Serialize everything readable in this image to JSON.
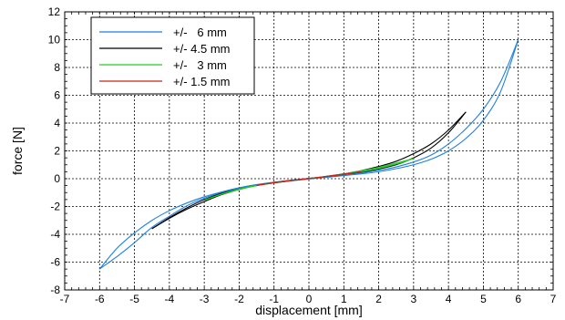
{
  "chart_data": {
    "type": "line",
    "title": "",
    "xlabel": "displacement [mm]",
    "ylabel": "force [N]",
    "xlim": [
      -7,
      7
    ],
    "ylim": [
      -8,
      12
    ],
    "xticks": [
      -7,
      -6,
      -5,
      -4,
      -3,
      -2,
      -1,
      0,
      1,
      2,
      3,
      4,
      5,
      6,
      7
    ],
    "yticks": [
      -8,
      -6,
      -4,
      -2,
      0,
      2,
      4,
      6,
      8,
      10,
      12
    ],
    "grid": true,
    "legend_position": "top-left",
    "series": [
      {
        "name": "+/-   6 mm",
        "color": "#1f7fe0",
        "loading": {
          "x": [
            -6,
            -5.5,
            -5,
            -4.5,
            -4,
            -3.5,
            -3,
            -2.5,
            -2,
            -1.5,
            -1,
            -0.5,
            0,
            0.5,
            1,
            1.5,
            2,
            2.5,
            3,
            3.5,
            4,
            4.5,
            5,
            5.5,
            6
          ],
          "y": [
            -6.5,
            -5.0,
            -3.9,
            -3.0,
            -2.3,
            -1.75,
            -1.3,
            -0.95,
            -0.65,
            -0.42,
            -0.25,
            -0.1,
            0.02,
            0.15,
            0.28,
            0.42,
            0.6,
            0.85,
            1.2,
            1.7,
            2.5,
            3.6,
            5.0,
            7.0,
            10.0
          ]
        },
        "unloading": {
          "x": [
            6,
            5.5,
            5,
            4.5,
            4,
            3.5,
            3,
            2.5,
            2,
            1.5,
            1,
            0.5,
            0,
            -0.5,
            -1,
            -1.5,
            -2,
            -2.5,
            -3,
            -3.5,
            -4,
            -4.5,
            -5,
            -5.5,
            -6
          ],
          "y": [
            10.0,
            6.3,
            4.2,
            2.9,
            2.0,
            1.4,
            1.0,
            0.72,
            0.5,
            0.35,
            0.22,
            0.1,
            -0.02,
            -0.15,
            -0.3,
            -0.48,
            -0.7,
            -1.0,
            -1.4,
            -1.95,
            -2.7,
            -3.5,
            -4.6,
            -5.6,
            -6.5
          ]
        }
      },
      {
        "name": "+/- 4.5 mm",
        "color": "#000000",
        "loading": {
          "x": [
            -4.5,
            -4,
            -3.5,
            -3,
            -2.5,
            -2,
            -1.5,
            -1,
            -0.5,
            0,
            0.5,
            1,
            1.5,
            2,
            2.5,
            3,
            3.5,
            4,
            4.5
          ],
          "y": [
            -3.6,
            -2.85,
            -2.2,
            -1.65,
            -1.15,
            -0.78,
            -0.48,
            -0.27,
            -0.12,
            0.02,
            0.15,
            0.3,
            0.48,
            0.7,
            1.0,
            1.5,
            2.2,
            3.3,
            4.8
          ]
        },
        "unloading": {
          "x": [
            4.5,
            4,
            3.5,
            3,
            2.5,
            2,
            1.5,
            1,
            0.5,
            0,
            -0.5,
            -1,
            -1.5,
            -2,
            -2.5,
            -3,
            -3.5,
            -4,
            -4.5
          ],
          "y": [
            4.8,
            3.5,
            2.5,
            1.8,
            1.25,
            0.88,
            0.58,
            0.35,
            0.17,
            0.0,
            -0.14,
            -0.3,
            -0.5,
            -0.75,
            -1.05,
            -1.5,
            -2.1,
            -2.8,
            -3.6
          ]
        }
      },
      {
        "name": "+/-   3 mm",
        "color": "#22cc22",
        "loading": {
          "x": [
            -3,
            -2.5,
            -2,
            -1.5,
            -1,
            -0.5,
            0,
            0.5,
            1,
            1.5,
            2,
            2.5,
            3
          ],
          "y": [
            -1.55,
            -1.1,
            -0.75,
            -0.47,
            -0.27,
            -0.12,
            0.02,
            0.15,
            0.3,
            0.5,
            0.75,
            1.05,
            1.45
          ]
        },
        "unloading": {
          "x": [
            3,
            2.5,
            2,
            1.5,
            1,
            0.5,
            0,
            -0.5,
            -1,
            -1.5,
            -2,
            -2.5,
            -3
          ],
          "y": [
            1.45,
            1.12,
            0.82,
            0.57,
            0.35,
            0.17,
            0.0,
            -0.14,
            -0.3,
            -0.5,
            -0.78,
            -1.12,
            -1.55
          ]
        }
      },
      {
        "name": "+/- 1.5 mm",
        "color": "#cc2222",
        "loading": {
          "x": [
            -1.5,
            -1,
            -0.5,
            0,
            0.5,
            1,
            1.5
          ],
          "y": [
            -0.48,
            -0.27,
            -0.12,
            0.02,
            0.16,
            0.31,
            0.5
          ]
        },
        "unloading": {
          "x": [
            1.5,
            1,
            0.5,
            0,
            -0.5,
            -1,
            -1.5
          ],
          "y": [
            0.5,
            0.33,
            0.17,
            0.0,
            -0.14,
            -0.3,
            -0.48
          ]
        }
      }
    ]
  }
}
